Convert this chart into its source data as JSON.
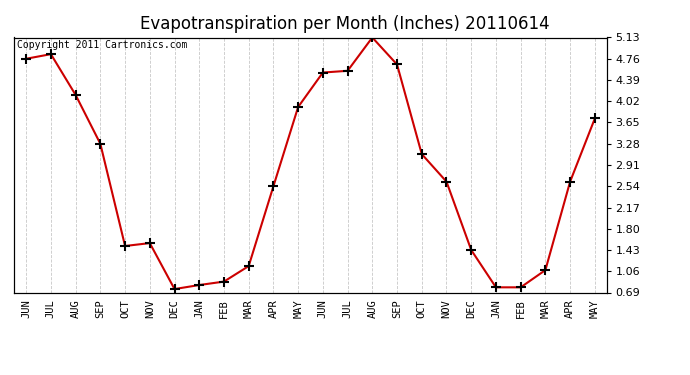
{
  "title": "Evapotranspiration per Month (Inches) 20110614",
  "copyright": "Copyright 2011 Cartronics.com",
  "months": [
    "JUN",
    "JUL",
    "AUG",
    "SEP",
    "OCT",
    "NOV",
    "DEC",
    "JAN",
    "FEB",
    "MAR",
    "APR",
    "MAY",
    "JUN",
    "JUL",
    "AUG",
    "SEP",
    "OCT",
    "NOV",
    "DEC",
    "JAN",
    "FEB",
    "MAR",
    "APR",
    "MAY"
  ],
  "values": [
    4.76,
    4.84,
    4.13,
    3.28,
    1.5,
    1.55,
    0.75,
    0.82,
    0.88,
    1.15,
    2.54,
    3.92,
    4.52,
    4.55,
    5.13,
    4.66,
    3.1,
    2.62,
    1.43,
    0.78,
    0.78,
    1.08,
    2.62,
    3.72
  ],
  "ylim": [
    0.69,
    5.13
  ],
  "yticks": [
    0.69,
    1.06,
    1.43,
    1.8,
    2.17,
    2.54,
    2.91,
    3.28,
    3.65,
    4.02,
    4.39,
    4.76,
    5.13
  ],
  "line_color": "#cc0000",
  "marker_color": "#000000",
  "bg_color": "#ffffff",
  "grid_color": "#c8c8c8",
  "title_fontsize": 12,
  "copyright_fontsize": 7,
  "tick_fontsize": 8,
  "xlabel_fontsize": 7.5
}
